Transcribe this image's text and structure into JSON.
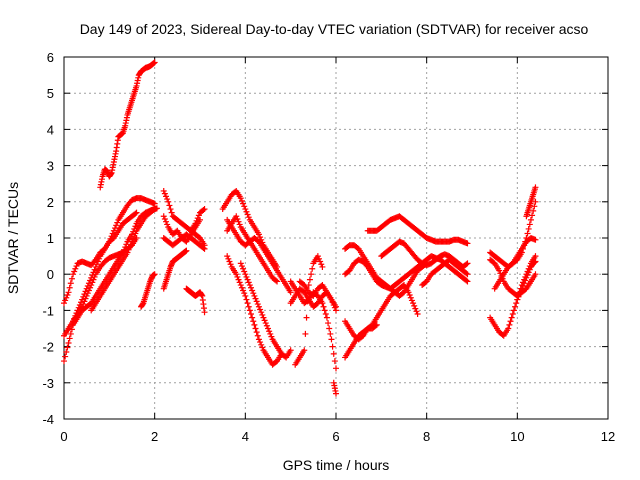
{
  "chart_data": {
    "type": "scatter",
    "title": "Day 149 of 2023, Sidereal Day-to-day VTEC variation (SDTVAR) for receiver acso",
    "xlabel": "GPS time / hours",
    "ylabel": "SDTVAR / TECUs",
    "xlim": [
      0,
      12
    ],
    "ylim": [
      -4,
      6
    ],
    "xticks": [
      0,
      2,
      4,
      6,
      8,
      10,
      12
    ],
    "yticks": [
      -4,
      -3,
      -2,
      -1,
      0,
      1,
      2,
      3,
      4,
      5,
      6
    ],
    "grid": true,
    "marker": "+",
    "marker_color": "#ff0000",
    "series": [
      {
        "x": [
          0.0,
          0.1,
          0.2,
          0.3,
          0.4,
          0.5,
          0.6,
          0.7,
          0.8,
          0.9,
          1.0,
          1.1,
          1.2,
          1.3,
          1.4,
          1.5,
          1.6,
          1.7,
          1.8,
          1.9,
          2.0
        ],
        "y": [
          -1.7,
          -1.5,
          -1.3,
          -1.0,
          -0.7,
          -0.4,
          -0.1,
          0.2,
          0.5,
          0.7,
          0.9,
          1.2,
          1.5,
          1.7,
          1.9,
          2.05,
          2.1,
          2.1,
          2.05,
          2.0,
          1.95
        ]
      },
      {
        "x": [
          0.0,
          0.1,
          0.2,
          0.3,
          0.4,
          0.5,
          0.6,
          0.7,
          0.8,
          0.9,
          1.0,
          1.1,
          1.2,
          1.3,
          1.4,
          1.5,
          1.6,
          1.7,
          1.8,
          1.9,
          2.0
        ],
        "y": [
          -2.4,
          -1.9,
          -1.4,
          -1.2,
          -1.0,
          -0.9,
          -0.8,
          -0.6,
          -0.4,
          -0.2,
          0.0,
          0.2,
          0.4,
          0.6,
          0.9,
          1.1,
          1.4,
          1.6,
          1.7,
          1.75,
          1.8
        ]
      },
      {
        "x": [
          0.0,
          0.1,
          0.2,
          0.3,
          0.4,
          0.5,
          0.6,
          0.7,
          0.8,
          0.9,
          1.0,
          1.1,
          1.2,
          1.3,
          1.4,
          1.5,
          1.6
        ],
        "y": [
          -0.8,
          -0.5,
          0.0,
          0.3,
          0.35,
          0.3,
          0.25,
          0.4,
          0.6,
          0.7,
          0.9,
          1.0,
          1.2,
          1.4,
          1.5,
          1.6,
          1.7
        ]
      },
      {
        "x": [
          0.2,
          0.3,
          0.4,
          0.5,
          0.6,
          0.7,
          0.8,
          0.9,
          1.0,
          1.1,
          1.2,
          1.3,
          1.4,
          1.5,
          1.6
        ],
        "y": [
          -1.3,
          -1.1,
          -0.9,
          -0.6,
          -0.3,
          0.0,
          0.2,
          0.35,
          0.45,
          0.5,
          0.55,
          0.6,
          0.7,
          0.8,
          1.0
        ]
      },
      {
        "x": [
          0.6,
          0.7,
          0.8,
          0.9,
          1.0,
          1.1,
          1.2,
          1.3,
          1.4,
          1.5,
          1.6,
          1.7,
          1.8,
          1.9,
          2.0
        ],
        "y": [
          -1.0,
          -0.8,
          -0.6,
          -0.4,
          -0.2,
          0.0,
          0.2,
          0.4,
          0.6,
          0.9,
          1.2,
          1.4,
          1.6,
          1.7,
          1.8
        ]
      },
      {
        "x": [
          0.8,
          0.85,
          0.9,
          0.95,
          1.0,
          1.05,
          1.1,
          1.15,
          1.2,
          1.25,
          1.3,
          1.35,
          1.4,
          1.45,
          1.5,
          1.55,
          1.6,
          1.65,
          1.7,
          1.75,
          1.8,
          1.85,
          1.9,
          1.95,
          2.0
        ],
        "y": [
          2.4,
          2.7,
          2.9,
          2.85,
          2.7,
          2.8,
          3.1,
          3.4,
          3.8,
          3.85,
          3.9,
          4.1,
          4.4,
          4.6,
          4.8,
          5.0,
          5.2,
          5.5,
          5.6,
          5.65,
          5.7,
          5.72,
          5.75,
          5.8,
          5.85
        ]
      },
      {
        "x": [
          1.7,
          1.75,
          1.8,
          1.85,
          1.9,
          1.95,
          2.0
        ],
        "y": [
          -0.9,
          -0.8,
          -0.6,
          -0.4,
          -0.2,
          -0.05,
          0.0
        ]
      },
      {
        "x": [
          1.75,
          1.8,
          1.85,
          1.9,
          1.95,
          2.0,
          2.05
        ],
        "y": [
          1.6,
          1.65,
          1.7,
          1.75,
          1.78,
          1.8,
          1.82
        ]
      },
      {
        "x": [
          2.2,
          2.3,
          2.4,
          2.5,
          2.6,
          2.7,
          2.8,
          2.9,
          3.0,
          3.1
        ],
        "y": [
          2.3,
          2.0,
          1.6,
          1.5,
          1.4,
          1.3,
          1.2,
          1.1,
          1.0,
          0.8
        ]
      },
      {
        "x": [
          2.2,
          2.3,
          2.4,
          2.5,
          2.6,
          2.7,
          2.8,
          2.9,
          3.0
        ],
        "y": [
          1.6,
          1.3,
          1.1,
          1.2,
          1.0,
          0.9,
          1.1,
          1.3,
          1.5
        ]
      },
      {
        "x": [
          2.2,
          2.3,
          2.4,
          2.5,
          2.6,
          2.7,
          2.8,
          2.9,
          3.0,
          3.1
        ],
        "y": [
          1.0,
          0.9,
          0.8,
          0.9,
          1.0,
          1.1,
          1.0,
          0.9,
          0.8,
          0.7
        ]
      },
      {
        "x": [
          2.8,
          2.9,
          3.0,
          3.1
        ],
        "y": [
          1.2,
          1.4,
          1.7,
          1.8
        ]
      },
      {
        "x": [
          2.2,
          2.25,
          2.3,
          2.35,
          2.4,
          2.45,
          2.5,
          2.55,
          2.6,
          2.65,
          2.7
        ],
        "y": [
          -0.4,
          -0.2,
          0.0,
          0.2,
          0.35,
          0.4,
          0.45,
          0.5,
          0.55,
          0.6,
          0.65
        ]
      },
      {
        "x": [
          2.7,
          2.75,
          2.8,
          2.85,
          2.9,
          2.95,
          3.0,
          3.05,
          3.1
        ],
        "y": [
          -0.4,
          -0.45,
          -0.5,
          -0.55,
          -0.6,
          -0.55,
          -0.5,
          -0.6,
          -1.05
        ]
      },
      {
        "x": [
          3.5,
          3.6,
          3.7,
          3.8,
          3.9,
          4.0,
          4.1,
          4.2,
          4.3,
          4.4,
          4.5,
          4.6,
          4.7
        ],
        "y": [
          1.8,
          2.0,
          2.2,
          2.3,
          2.1,
          1.8,
          1.5,
          1.3,
          1.1,
          0.8,
          0.6,
          0.4,
          0.2
        ]
      },
      {
        "x": [
          3.6,
          3.7,
          3.8,
          3.9,
          4.0,
          4.1,
          4.2,
          4.3,
          4.4,
          4.5,
          4.6,
          4.7
        ],
        "y": [
          1.2,
          1.4,
          1.6,
          1.3,
          1.1,
          0.9,
          0.7,
          0.5,
          0.3,
          0.1,
          -0.1,
          -0.2
        ]
      },
      {
        "x": [
          3.6,
          3.7,
          3.8,
          3.9,
          4.0,
          4.1,
          4.2,
          4.3,
          4.4,
          4.5,
          4.6,
          4.7,
          4.8,
          4.9,
          5.0
        ],
        "y": [
          1.5,
          1.3,
          1.1,
          0.9,
          0.8,
          0.9,
          1.0,
          0.9,
          0.7,
          0.5,
          0.3,
          0.1,
          -0.1,
          -0.3,
          -0.5
        ]
      },
      {
        "x": [
          3.6,
          3.7,
          3.8,
          3.9,
          4.0,
          4.1,
          4.2,
          4.3,
          4.4,
          4.5,
          4.6,
          4.7,
          4.8
        ],
        "y": [
          0.5,
          0.2,
          0.0,
          -0.3,
          -0.6,
          -1.0,
          -1.4,
          -1.8,
          -2.1,
          -2.3,
          -2.5,
          -2.4,
          -2.2
        ]
      },
      {
        "x": [
          3.9,
          4.0,
          4.1,
          4.2,
          4.3,
          4.4,
          4.5,
          4.6,
          4.7,
          4.8,
          4.9,
          5.0
        ],
        "y": [
          0.3,
          0.0,
          -0.3,
          -0.6,
          -0.9,
          -1.2,
          -1.5,
          -1.8,
          -2.0,
          -2.2,
          -2.3,
          -2.1
        ]
      },
      {
        "x": [
          5.0,
          5.1,
          5.2,
          5.3,
          5.4,
          5.5,
          5.6,
          5.7,
          5.8,
          5.9,
          6.0
        ],
        "y": [
          -0.2,
          -0.4,
          -0.6,
          -0.8,
          -0.7,
          -0.5,
          -0.6,
          -0.8,
          -1.2,
          -1.8,
          -2.6
        ]
      },
      {
        "x": [
          5.0,
          5.1,
          5.2,
          5.3,
          5.4,
          5.5,
          5.6,
          5.7,
          5.8,
          5.9,
          6.0
        ],
        "y": [
          -0.8,
          -0.6,
          -0.4,
          -0.5,
          -0.7,
          -0.9,
          -0.8,
          -0.6,
          -0.5,
          -0.7,
          -1.0
        ]
      },
      {
        "x": [
          5.1,
          5.2,
          5.3,
          5.4,
          5.5,
          5.6,
          5.7
        ],
        "y": [
          -2.5,
          -2.3,
          -2.1,
          -0.3,
          0.3,
          0.5,
          0.2
        ]
      },
      {
        "x": [
          5.2,
          5.3,
          5.4,
          5.5,
          5.6,
          5.7,
          5.8,
          5.9,
          6.0
        ],
        "y": [
          -0.2,
          -0.3,
          -0.5,
          -0.6,
          -0.4,
          -0.3,
          -0.5,
          -0.7,
          -0.9
        ]
      },
      {
        "x": [
          5.95,
          6.0
        ],
        "y": [
          -3.0,
          -3.3
        ]
      },
      {
        "x": [
          6.2,
          6.3,
          6.4,
          6.5,
          6.6,
          6.7,
          6.8,
          6.9,
          7.0,
          7.1,
          7.2,
          7.3,
          7.4,
          7.5,
          7.6,
          7.7,
          7.8,
          7.9,
          8.0
        ],
        "y": [
          0.7,
          0.8,
          0.8,
          0.7,
          0.5,
          0.3,
          0.1,
          -0.1,
          -0.2,
          -0.3,
          -0.4,
          -0.5,
          -0.6,
          -0.5,
          -0.3,
          -0.1,
          0.1,
          0.2,
          0.3
        ]
      },
      {
        "x": [
          6.2,
          6.3,
          6.4,
          6.5,
          6.6,
          6.7,
          6.8,
          6.9,
          7.0,
          7.1,
          7.2,
          7.3,
          7.4,
          7.5,
          7.6,
          7.7,
          7.8,
          7.9,
          8.0,
          8.1,
          8.2,
          8.3,
          8.4,
          8.5,
          8.6,
          8.7,
          8.8,
          8.9
        ],
        "y": [
          0.0,
          0.1,
          0.3,
          0.4,
          0.35,
          0.2,
          0.0,
          -0.2,
          -0.3,
          -0.35,
          -0.4,
          -0.3,
          -0.2,
          -0.1,
          0.0,
          0.1,
          0.2,
          0.3,
          0.4,
          0.5,
          0.45,
          0.4,
          0.3,
          0.2,
          0.1,
          0.0,
          -0.1,
          -0.2
        ]
      },
      {
        "x": [
          6.2,
          6.3,
          6.4,
          6.5,
          6.6,
          6.7,
          6.8,
          6.9,
          7.0,
          7.1,
          7.2,
          7.3,
          7.4,
          7.5,
          7.6,
          7.7,
          7.8
        ],
        "y": [
          -1.3,
          -1.5,
          -1.7,
          -1.8,
          -1.7,
          -1.5,
          -1.4,
          -1.2,
          -1.0,
          -0.8,
          -0.6,
          -0.5,
          -0.4,
          -0.3,
          -0.5,
          -0.8,
          -1.1
        ]
      },
      {
        "x": [
          6.2,
          6.3,
          6.4,
          6.5,
          6.6,
          6.7,
          6.8,
          6.9
        ],
        "y": [
          -2.3,
          -2.1,
          -1.9,
          -1.7,
          -1.6,
          -1.5,
          -1.5,
          -1.4
        ]
      },
      {
        "x": [
          6.7,
          6.8,
          6.9,
          7.0,
          7.1,
          7.2,
          7.3,
          7.4,
          7.5,
          7.6,
          7.7,
          7.8,
          7.9,
          8.0,
          8.1,
          8.2,
          8.3,
          8.4,
          8.5,
          8.6,
          8.7,
          8.8,
          8.9
        ],
        "y": [
          1.2,
          1.2,
          1.2,
          1.3,
          1.4,
          1.5,
          1.55,
          1.6,
          1.5,
          1.4,
          1.3,
          1.2,
          1.1,
          1.0,
          0.95,
          0.9,
          0.9,
          0.9,
          0.9,
          0.95,
          0.95,
          0.9,
          0.85
        ]
      },
      {
        "x": [
          7.0,
          7.1,
          7.2,
          7.3,
          7.4,
          7.5,
          7.6,
          7.7,
          7.8,
          7.9,
          8.0,
          8.1,
          8.2,
          8.3,
          8.4,
          8.5,
          8.6,
          8.7,
          8.8,
          8.9
        ],
        "y": [
          0.5,
          0.6,
          0.7,
          0.8,
          0.9,
          0.85,
          0.7,
          0.55,
          0.4,
          0.3,
          0.25,
          0.3,
          0.4,
          0.5,
          0.55,
          0.5,
          0.4,
          0.3,
          0.2,
          0.3
        ]
      },
      {
        "x": [
          7.9,
          8.0,
          8.1,
          8.2,
          8.3,
          8.4,
          8.5,
          8.6,
          8.7,
          8.8,
          8.9
        ],
        "y": [
          -0.3,
          -0.2,
          0.0,
          0.1,
          0.2,
          0.3,
          0.4,
          0.3,
          0.2,
          0.1,
          0.0
        ]
      },
      {
        "x": [
          9.4,
          9.5,
          9.6,
          9.7,
          9.8,
          9.9,
          10.0,
          10.1,
          10.2,
          10.3,
          10.4
        ],
        "y": [
          -1.2,
          -1.4,
          -1.6,
          -1.7,
          -1.5,
          -1.1,
          -0.7,
          -0.3,
          0.0,
          0.3,
          0.5
        ]
      },
      {
        "x": [
          9.4,
          9.5,
          9.6,
          9.7,
          9.8,
          9.9,
          10.0,
          10.1,
          10.2,
          10.3,
          10.4
        ],
        "y": [
          0.6,
          0.5,
          0.4,
          0.3,
          0.2,
          0.3,
          0.5,
          0.7,
          0.9,
          1.0,
          0.95
        ]
      },
      {
        "x": [
          9.4,
          9.5,
          9.6,
          9.7,
          9.8,
          9.9,
          10.0,
          10.1,
          10.2,
          10.3,
          10.4
        ],
        "y": [
          0.4,
          0.3,
          0.1,
          -0.2,
          -0.4,
          -0.5,
          -0.6,
          -0.5,
          -0.4,
          -0.2,
          0.0
        ]
      },
      {
        "x": [
          9.5,
          9.6,
          9.7,
          9.8,
          9.9,
          10.0,
          10.1,
          10.2,
          10.3,
          10.4
        ],
        "y": [
          -0.4,
          -0.2,
          0.0,
          0.2,
          0.3,
          0.4,
          0.6,
          1.0,
          1.5,
          2.0
        ]
      },
      {
        "x": [
          10.0,
          10.1,
          10.2,
          10.3,
          10.35,
          10.4
        ],
        "y": [
          -0.7,
          -0.4,
          -0.1,
          0.2,
          0.3,
          0.35
        ]
      },
      {
        "x": [
          10.2,
          10.25,
          10.3,
          10.35,
          10.4
        ],
        "y": [
          1.6,
          1.8,
          2.0,
          2.2,
          2.4
        ]
      }
    ]
  }
}
